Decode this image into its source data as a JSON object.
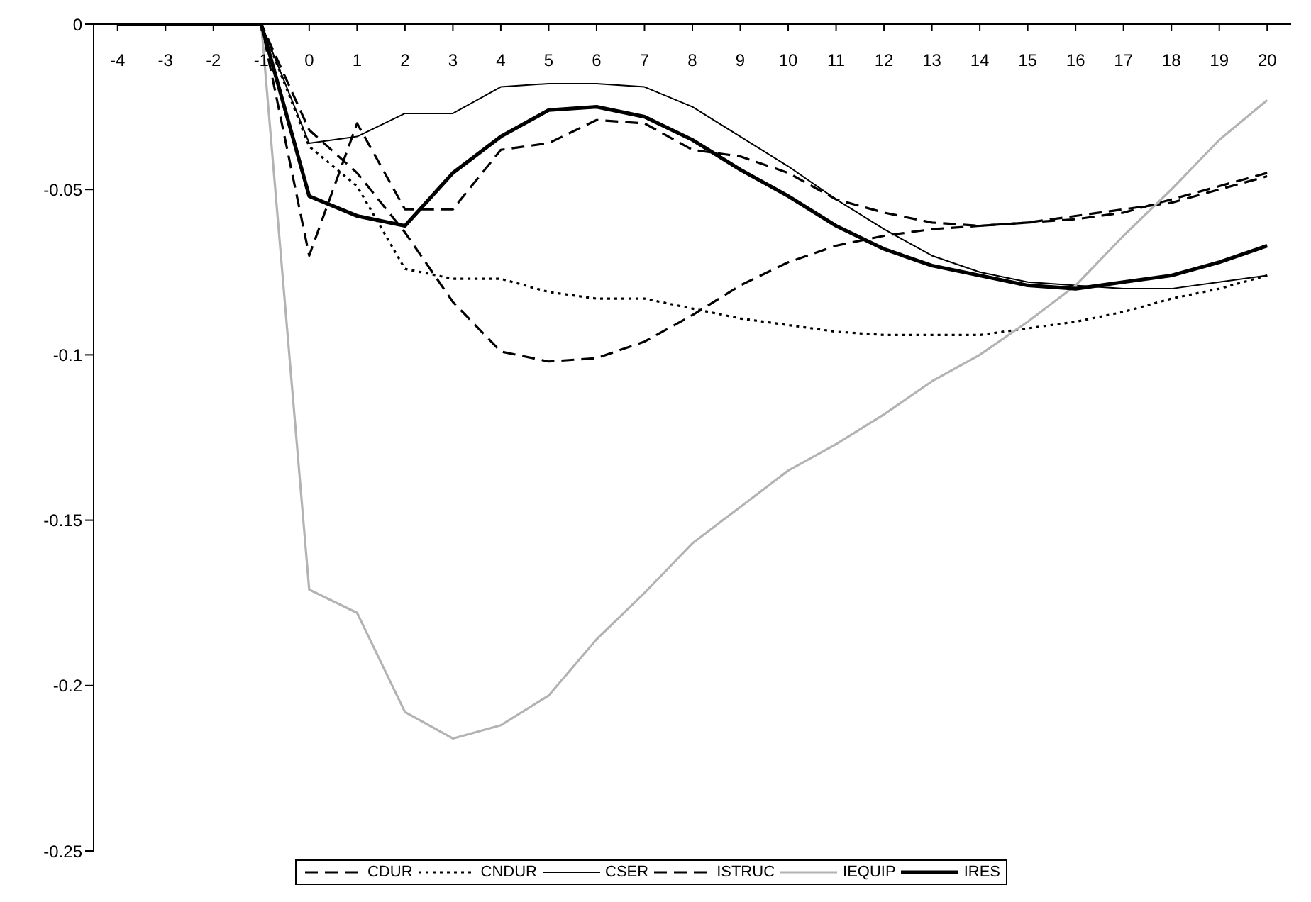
{
  "chart_data": {
    "type": "line",
    "x": [
      -4,
      -3,
      -2,
      -1,
      0,
      1,
      2,
      3,
      4,
      5,
      6,
      7,
      8,
      9,
      10,
      11,
      12,
      13,
      14,
      15,
      16,
      17,
      18,
      19,
      20
    ],
    "xlim": [
      -4.5,
      20.5
    ],
    "xticks": [
      -4,
      -3,
      -2,
      -1,
      0,
      1,
      2,
      3,
      4,
      5,
      6,
      7,
      8,
      9,
      10,
      11,
      12,
      13,
      14,
      15,
      16,
      17,
      18,
      19,
      20
    ],
    "ylim": [
      -0.25,
      0
    ],
    "yticks": [
      -0.25,
      -0.2,
      -0.15,
      -0.1,
      -0.05,
      0
    ],
    "grid": false,
    "legend": "bottom",
    "marker": "none",
    "series": [
      {
        "name": "CDUR",
        "color": "#000000",
        "line_style": "dashed",
        "values": [
          0,
          0,
          0,
          0,
          -0.07,
          -0.03,
          -0.056,
          -0.056,
          -0.038,
          -0.036,
          -0.029,
          -0.03,
          -0.038,
          -0.04,
          -0.045,
          -0.053,
          -0.057,
          -0.06,
          -0.061,
          -0.06,
          -0.059,
          -0.057,
          -0.053,
          -0.049,
          -0.045
        ]
      },
      {
        "name": "CNDUR",
        "color": "#000000",
        "line_style": "dotted",
        "values": [
          0,
          0,
          0,
          0,
          -0.037,
          -0.049,
          -0.074,
          -0.077,
          -0.077,
          -0.081,
          -0.083,
          -0.083,
          -0.086,
          -0.089,
          -0.091,
          -0.093,
          -0.094,
          -0.094,
          -0.094,
          -0.092,
          -0.09,
          -0.087,
          -0.083,
          -0.08,
          -0.076
        ]
      },
      {
        "name": "CSER",
        "color": "#000000",
        "line_style": "solid",
        "values": [
          0,
          0,
          0,
          0,
          -0.036,
          -0.034,
          -0.027,
          -0.027,
          -0.019,
          -0.018,
          -0.018,
          -0.019,
          -0.025,
          -0.034,
          -0.043,
          -0.053,
          -0.062,
          -0.07,
          -0.075,
          -0.078,
          -0.079,
          -0.08,
          -0.08,
          -0.078,
          -0.076
        ]
      },
      {
        "name": "ISTRUC",
        "color": "#000000",
        "line_style": "dashed",
        "values": [
          0,
          0,
          0,
          0,
          -0.032,
          -0.045,
          -0.063,
          -0.084,
          -0.099,
          -0.102,
          -0.101,
          -0.096,
          -0.088,
          -0.079,
          -0.072,
          -0.067,
          -0.064,
          -0.062,
          -0.061,
          -0.06,
          -0.058,
          -0.056,
          -0.054,
          -0.05,
          -0.046
        ]
      },
      {
        "name": "IEQUIP",
        "color": "#b3b3b3",
        "line_style": "solid",
        "values": [
          0,
          0,
          0,
          0,
          -0.171,
          -0.178,
          -0.208,
          -0.216,
          -0.212,
          -0.203,
          -0.186,
          -0.172,
          -0.157,
          -0.146,
          -0.135,
          -0.127,
          -0.118,
          -0.108,
          -0.1,
          -0.09,
          -0.079,
          -0.064,
          -0.05,
          -0.035,
          -0.023
        ]
      },
      {
        "name": "IRES",
        "color": "#000000",
        "line_style": "solid",
        "values": [
          0,
          0,
          0,
          0,
          -0.052,
          -0.058,
          -0.061,
          -0.045,
          -0.034,
          -0.026,
          -0.025,
          -0.028,
          -0.035,
          -0.044,
          -0.052,
          -0.061,
          -0.068,
          -0.073,
          -0.076,
          -0.079,
          -0.08,
          -0.078,
          -0.076,
          -0.072,
          -0.067
        ]
      }
    ]
  }
}
